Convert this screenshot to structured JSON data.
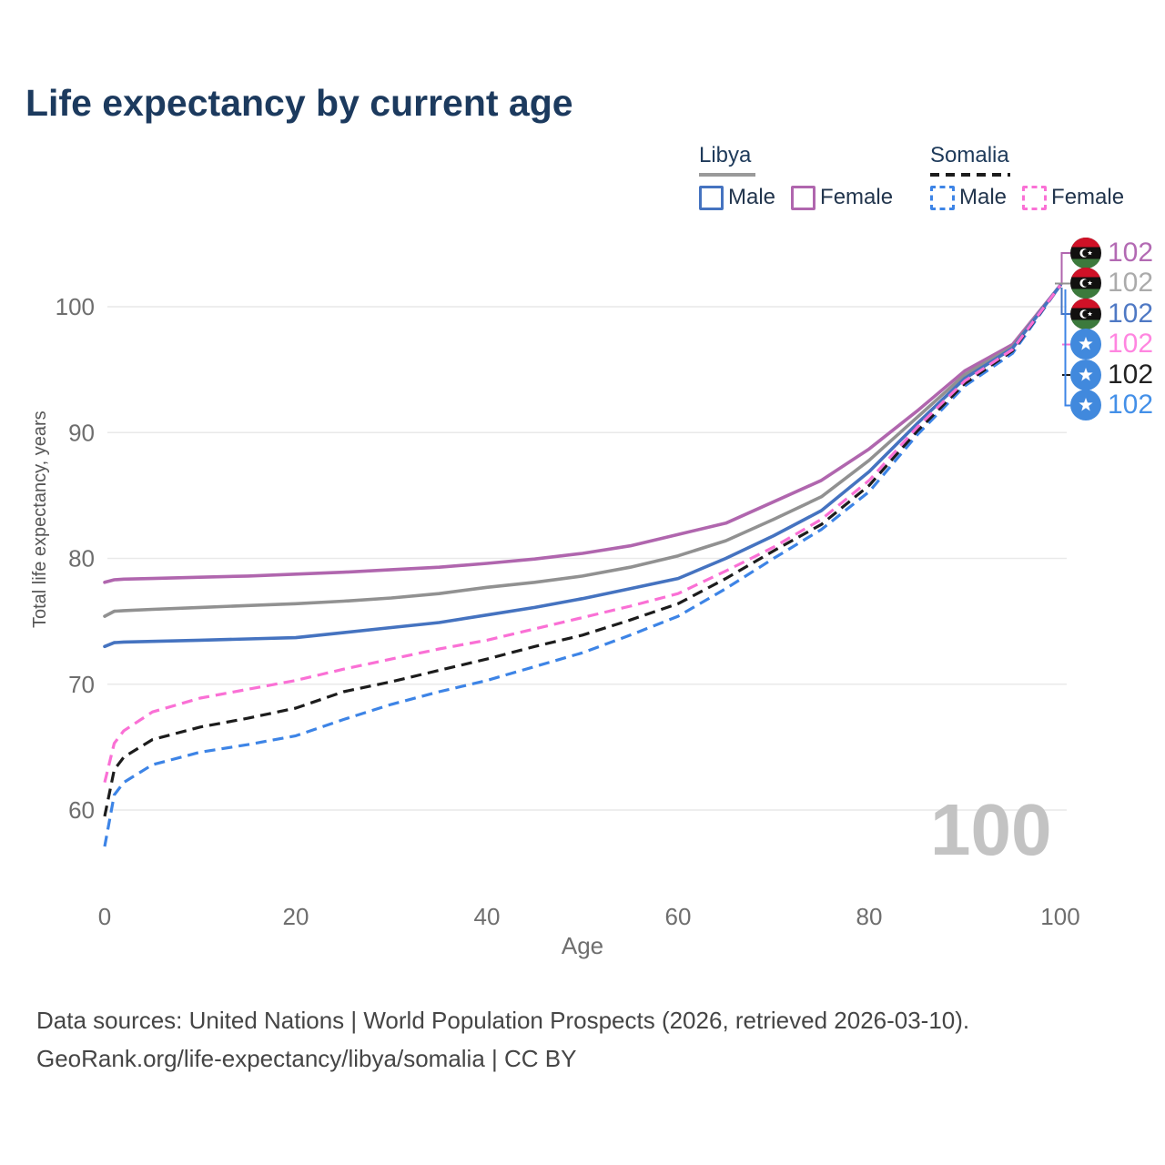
{
  "title": "Life expectancy by current age",
  "legend": {
    "libya": {
      "label": "Libya",
      "male": "Male",
      "female": "Female"
    },
    "somalia": {
      "label": "Somalia",
      "male": "Male",
      "female": "Female"
    }
  },
  "chart_data": {
    "type": "line",
    "title": "Life expectancy by current age",
    "xlabel": "Age",
    "ylabel": "Total life expectancy, years",
    "xlim": [
      0,
      100
    ],
    "ylim": [
      56,
      104
    ],
    "x_ticks": [
      0,
      20,
      40,
      60,
      80,
      100
    ],
    "y_ticks": [
      60,
      70,
      80,
      90,
      100
    ],
    "grid": true,
    "legend_position": "top-right",
    "watermark": "100",
    "ages": [
      0,
      1,
      2,
      5,
      10,
      15,
      20,
      25,
      30,
      35,
      40,
      45,
      50,
      55,
      60,
      65,
      70,
      75,
      80,
      85,
      90,
      95,
      100
    ],
    "series": [
      {
        "id": "libya-female",
        "country": "Libya",
        "sex": "Female",
        "color": "#b066ae",
        "dash": false,
        "values": [
          78.1,
          78.3,
          78.35,
          78.4,
          78.5,
          78.6,
          78.75,
          78.9,
          79.1,
          79.3,
          79.6,
          79.95,
          80.4,
          81.0,
          81.9,
          82.8,
          84.5,
          86.2,
          88.7,
          91.7,
          94.9,
          97.0,
          101.7
        ]
      },
      {
        "id": "libya-total",
        "country": "Libya",
        "sex": "Both",
        "color": "#919191",
        "dash": false,
        "values": [
          75.4,
          75.8,
          75.85,
          75.95,
          76.1,
          76.25,
          76.4,
          76.6,
          76.85,
          77.2,
          77.7,
          78.1,
          78.6,
          79.3,
          80.2,
          81.4,
          83.1,
          84.9,
          87.8,
          91.2,
          94.6,
          96.8,
          101.7
        ]
      },
      {
        "id": "libya-male",
        "country": "Libya",
        "sex": "Male",
        "color": "#4573c0",
        "dash": false,
        "values": [
          73.0,
          73.3,
          73.35,
          73.4,
          73.5,
          73.6,
          73.7,
          74.1,
          74.5,
          74.9,
          75.5,
          76.1,
          76.8,
          77.6,
          78.4,
          80.0,
          81.8,
          83.8,
          86.9,
          90.7,
          94.3,
          96.7,
          101.7
        ]
      },
      {
        "id": "somalia-female",
        "country": "Somalia",
        "sex": "Female",
        "color": "#fa70d5",
        "dash": true,
        "values": [
          62.2,
          65.3,
          66.3,
          67.8,
          68.9,
          69.6,
          70.3,
          71.2,
          72.0,
          72.8,
          73.5,
          74.4,
          75.3,
          76.2,
          77.2,
          79.0,
          80.9,
          83.1,
          86.2,
          90.4,
          94.1,
          96.6,
          101.7
        ]
      },
      {
        "id": "somalia-total",
        "country": "Somalia",
        "sex": "Both",
        "color": "#1c1c1c",
        "dash": true,
        "values": [
          59.5,
          63.2,
          64.2,
          65.6,
          66.6,
          67.3,
          68.1,
          69.4,
          70.2,
          71.1,
          72.0,
          73.0,
          73.9,
          75.1,
          76.4,
          78.4,
          80.6,
          82.7,
          85.8,
          90.1,
          93.9,
          96.5,
          101.7
        ]
      },
      {
        "id": "somalia-male",
        "country": "Somalia",
        "sex": "Male",
        "color": "#3d84e6",
        "dash": true,
        "values": [
          57.1,
          61.2,
          62.2,
          63.6,
          64.6,
          65.2,
          65.9,
          67.2,
          68.4,
          69.4,
          70.3,
          71.4,
          72.5,
          73.9,
          75.4,
          77.6,
          80.0,
          82.3,
          85.3,
          89.8,
          93.7,
          96.3,
          101.7
        ]
      }
    ],
    "end_labels": [
      {
        "flag": "libya",
        "value": "102",
        "color": "#b36ab3"
      },
      {
        "flag": "libya",
        "value": "102",
        "color": "#ababab"
      },
      {
        "flag": "libya",
        "value": "102",
        "color": "#4f79c4"
      },
      {
        "flag": "somalia",
        "value": "102",
        "color": "#ff86e0"
      },
      {
        "flag": "somalia",
        "value": "102",
        "color": "#222222"
      },
      {
        "flag": "somalia",
        "value": "102",
        "color": "#4490e8"
      }
    ]
  },
  "footer": {
    "line1": "Data sources: United Nations | World Population Prospects (2026, retrieved 2026-03-10).",
    "line2": "GeoRank.org/life-expectancy/libya/somalia | CC BY"
  }
}
